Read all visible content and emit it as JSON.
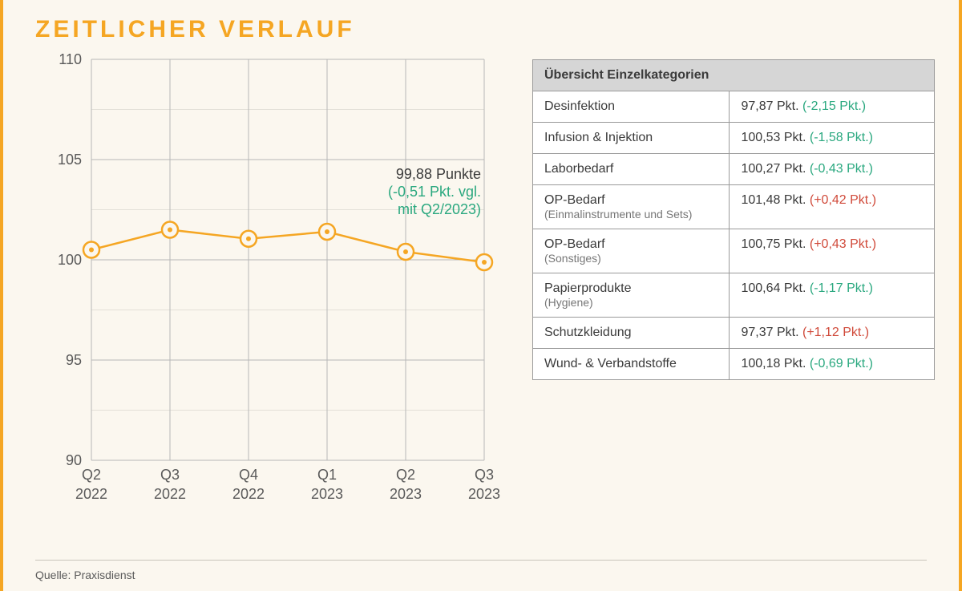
{
  "title": "ZEITLICHER VERLAUF",
  "source": "Quelle: Praxisdienst",
  "colors": {
    "accent": "#f5a623",
    "background": "#fbf7ef",
    "grid_major": "#b7b7b7",
    "grid_minor": "#e3e0d8",
    "text": "#3a3a3a",
    "text_muted": "#5a5a5a",
    "delta_neg": "#2aa87f",
    "delta_pos": "#d04a3a",
    "table_header_bg": "#d6d6d6",
    "table_border": "#9a9a9a"
  },
  "chart": {
    "type": "line",
    "ylim": [
      90,
      110
    ],
    "ytick_step": 5,
    "yticks": [
      90,
      95,
      100,
      105,
      110
    ],
    "x_labels": [
      "Q2\n2022",
      "Q3\n2022",
      "Q4\n2022",
      "Q1\n2023",
      "Q2\n2023",
      "Q3\n2023"
    ],
    "values": [
      100.5,
      101.5,
      101.05,
      101.4,
      100.4,
      99.88
    ],
    "line_color": "#f5a623",
    "line_width": 2.5,
    "marker_radius_outer": 10,
    "marker_radius_inner": 3,
    "background_color": "#fbf7ef",
    "annotation": {
      "main": "99,88 Punkte",
      "sub1": "(-0,51 Pkt. vgl.",
      "sub2": "mit Q2/2023)"
    }
  },
  "table": {
    "header": "Übersicht Einzelkategorien",
    "rows": [
      {
        "name": "Desinfektion",
        "sub": "",
        "value": "97,87 Pkt.",
        "delta": "(-2,15 Pkt.)",
        "dir": "neg"
      },
      {
        "name": "Infusion & Injektion",
        "sub": "",
        "value": "100,53 Pkt.",
        "delta": "(-1,58 Pkt.)",
        "dir": "neg"
      },
      {
        "name": "Laborbedarf",
        "sub": "",
        "value": "100,27 Pkt.",
        "delta": "(-0,43 Pkt.)",
        "dir": "neg"
      },
      {
        "name": "OP-Bedarf",
        "sub": "(Einmalinstrumente und Sets)",
        "value": "101,48 Pkt.",
        "delta": "(+0,42 Pkt.)",
        "dir": "pos"
      },
      {
        "name": "OP-Bedarf",
        "sub": "(Sonstiges)",
        "value": "100,75 Pkt.",
        "delta": "(+0,43 Pkt.)",
        "dir": "pos"
      },
      {
        "name": "Papierprodukte",
        "sub": "(Hygiene)",
        "value": "100,64 Pkt.",
        "delta": "(-1,17 Pkt.)",
        "dir": "neg"
      },
      {
        "name": "Schutzkleidung",
        "sub": "",
        "value": "97,37 Pkt.",
        "delta": "(+1,12 Pkt.)",
        "dir": "pos"
      },
      {
        "name": "Wund- & Verbandstoffe",
        "sub": "",
        "value": "100,18 Pkt.",
        "delta": "(-0,69 Pkt.)",
        "dir": "neg"
      }
    ]
  }
}
